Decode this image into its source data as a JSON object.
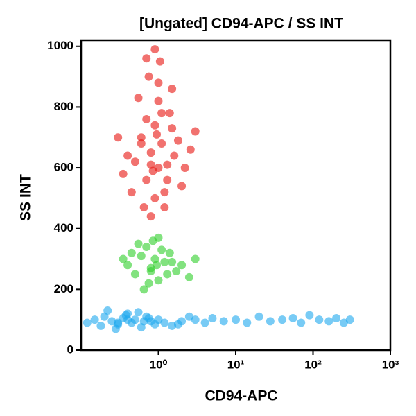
{
  "chart_data": {
    "type": "scatter",
    "title": "[Ungated] CD94-APC / SS INT",
    "x_label": "CD94-APC",
    "y_label": "SS INT",
    "xscale": "log",
    "xlim": [
      0.1,
      1000
    ],
    "ylim": [
      0,
      1020
    ],
    "xticks": [
      {
        "value": 1,
        "label": "10⁰"
      },
      {
        "value": 10,
        "label": "10¹"
      },
      {
        "value": 100,
        "label": "10²"
      },
      {
        "value": 1000,
        "label": "10³"
      }
    ],
    "yticks": [
      0,
      200,
      400,
      600,
      800,
      1000
    ],
    "series": [
      {
        "color": "#e8140f",
        "x": [
          0.5,
          0.6,
          0.7,
          0.8,
          0.9,
          1.0,
          1.1,
          1.2,
          1.4,
          1.6,
          0.55,
          0.65,
          0.75,
          0.85,
          0.95,
          1.05,
          1.3,
          1.5,
          1.8,
          2.2,
          0.4,
          0.45,
          0.7,
          0.8,
          0.9,
          1.0,
          1.2,
          1.5,
          2.0,
          2.6,
          0.35,
          0.6,
          0.8,
          1.0,
          1.1,
          0.9,
          0.7,
          1.3,
          3.0,
          0.3
        ],
        "y": [
          620,
          700,
          560,
          650,
          740,
          600,
          680,
          520,
          780,
          640,
          830,
          470,
          900,
          590,
          710,
          950,
          560,
          860,
          690,
          600,
          640,
          520,
          760,
          440,
          990,
          820,
          470,
          730,
          540,
          660,
          580,
          680,
          610,
          880,
          780,
          500,
          960,
          610,
          720,
          700
        ]
      },
      {
        "color": "#2fcf2a",
        "x": [
          0.4,
          0.5,
          0.6,
          0.7,
          0.8,
          0.9,
          1.0,
          1.2,
          1.4,
          1.7,
          2.0,
          2.5,
          0.35,
          0.55,
          0.75,
          0.85,
          1.1,
          1.3,
          0.65,
          0.95,
          3.0,
          0.45,
          1.5,
          0.8,
          1.0
        ],
        "y": [
          280,
          250,
          310,
          340,
          270,
          300,
          230,
          290,
          320,
          260,
          280,
          240,
          300,
          350,
          220,
          360,
          330,
          250,
          200,
          280,
          300,
          320,
          290,
          260,
          370
        ]
      },
      {
        "color": "#1ea8ee",
        "x": [
          0.12,
          0.15,
          0.18,
          0.2,
          0.25,
          0.3,
          0.35,
          0.4,
          0.45,
          0.5,
          0.6,
          0.7,
          0.8,
          0.9,
          1.0,
          1.2,
          1.5,
          0.22,
          0.28,
          0.38,
          0.55,
          0.65,
          0.75,
          0.3,
          0.4,
          2,
          3,
          4,
          5,
          7,
          10,
          14,
          20,
          28,
          40,
          55,
          70,
          90,
          120,
          160,
          200,
          250,
          300,
          1.8,
          2.5
        ],
        "y": [
          90,
          100,
          80,
          110,
          95,
          85,
          105,
          120,
          90,
          100,
          75,
          110,
          95,
          85,
          100,
          90,
          80,
          130,
          70,
          115,
          125,
          95,
          105,
          90,
          100,
          95,
          100,
          90,
          105,
          95,
          100,
          90,
          110,
          95,
          100,
          105,
          90,
          115,
          100,
          95,
          105,
          90,
          100,
          85,
          110
        ]
      }
    ]
  }
}
